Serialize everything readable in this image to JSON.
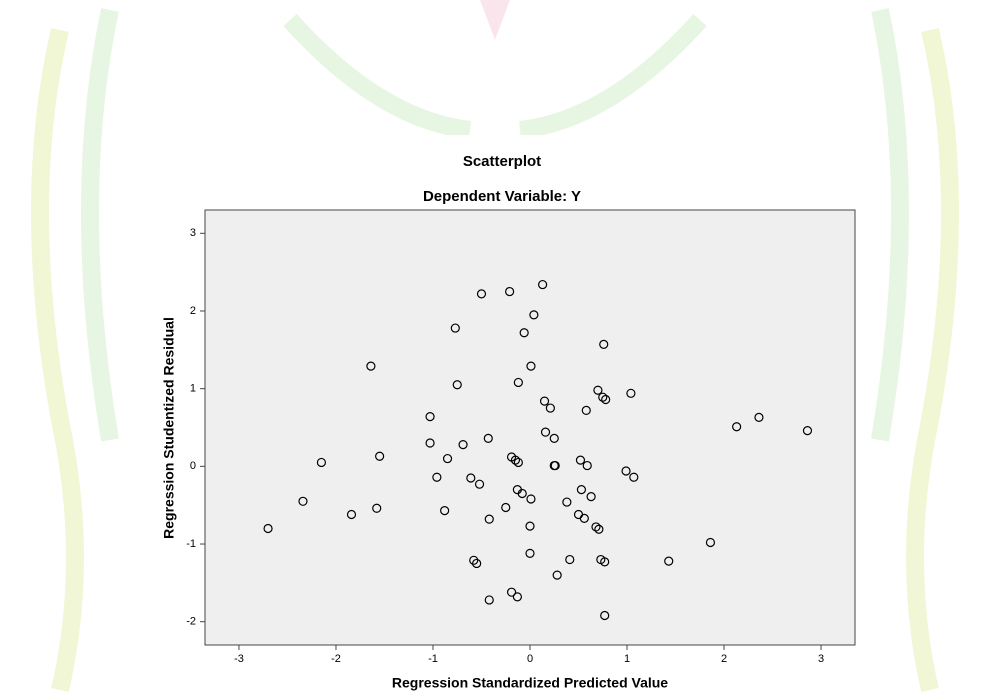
{
  "chart_data": {
    "type": "scatter",
    "title": "Scatterplot",
    "subtitle": "Dependent Variable: Y",
    "x_label": "Regression Standardized Predicted Value",
    "y_label": "Regression Studentized Residual",
    "xlim": [
      -3.35,
      3.35
    ],
    "ylim": [
      -2.3,
      3.3
    ],
    "xticks": [
      -3,
      -2,
      -1,
      0,
      1,
      2,
      3
    ],
    "yticks": [
      -2,
      -1,
      0,
      1,
      2,
      3
    ],
    "color": "#000000",
    "x": [
      0.13,
      -0.5,
      -0.21,
      0.04,
      -0.77,
      -0.06,
      0.76,
      -1.64,
      0.01,
      -0.75,
      -0.12,
      0.7,
      0.75,
      0.78,
      1.04,
      0.15,
      0.21,
      0.58,
      -1.03,
      2.36,
      2.13,
      2.86,
      0.16,
      0.25,
      -0.43,
      -1.03,
      -0.69,
      -0.85,
      -1.55,
      -2.15,
      -0.19,
      -0.15,
      -0.12,
      0.25,
      0.26,
      0.52,
      0.59,
      0.99,
      1.07,
      -0.96,
      -0.61,
      -0.52,
      0.53,
      -0.13,
      -0.08,
      0.01,
      0.63,
      0.38,
      -2.34,
      -0.25,
      -1.58,
      -0.88,
      -1.84,
      0.5,
      0.56,
      -0.42,
      0.68,
      0.71,
      0.0,
      -2.7,
      1.86,
      0.0,
      -0.58,
      -0.55,
      0.41,
      0.73,
      0.77,
      1.43,
      0.28,
      -0.19,
      -0.13,
      -0.42,
      0.77
    ],
    "values": [
      2.34,
      2.22,
      2.25,
      1.95,
      1.78,
      1.72,
      1.57,
      1.29,
      1.29,
      1.05,
      1.08,
      0.98,
      0.89,
      0.86,
      0.94,
      0.84,
      0.75,
      0.72,
      0.64,
      0.63,
      0.51,
      0.46,
      0.44,
      0.36,
      0.36,
      0.3,
      0.28,
      0.1,
      0.13,
      0.05,
      0.12,
      0.08,
      0.05,
      0.01,
      0.01,
      0.08,
      0.01,
      -0.06,
      -0.14,
      -0.14,
      -0.15,
      -0.23,
      -0.3,
      -0.3,
      -0.35,
      -0.42,
      -0.39,
      -0.46,
      -0.45,
      -0.53,
      -0.54,
      -0.57,
      -0.62,
      -0.62,
      -0.67,
      -0.68,
      -0.78,
      -0.81,
      -0.77,
      -0.8,
      -0.98,
      -1.12,
      -1.21,
      -1.25,
      -1.2,
      -1.2,
      -1.23,
      -1.22,
      -1.4,
      -1.62,
      -1.68,
      -1.72,
      -1.92
    ]
  }
}
